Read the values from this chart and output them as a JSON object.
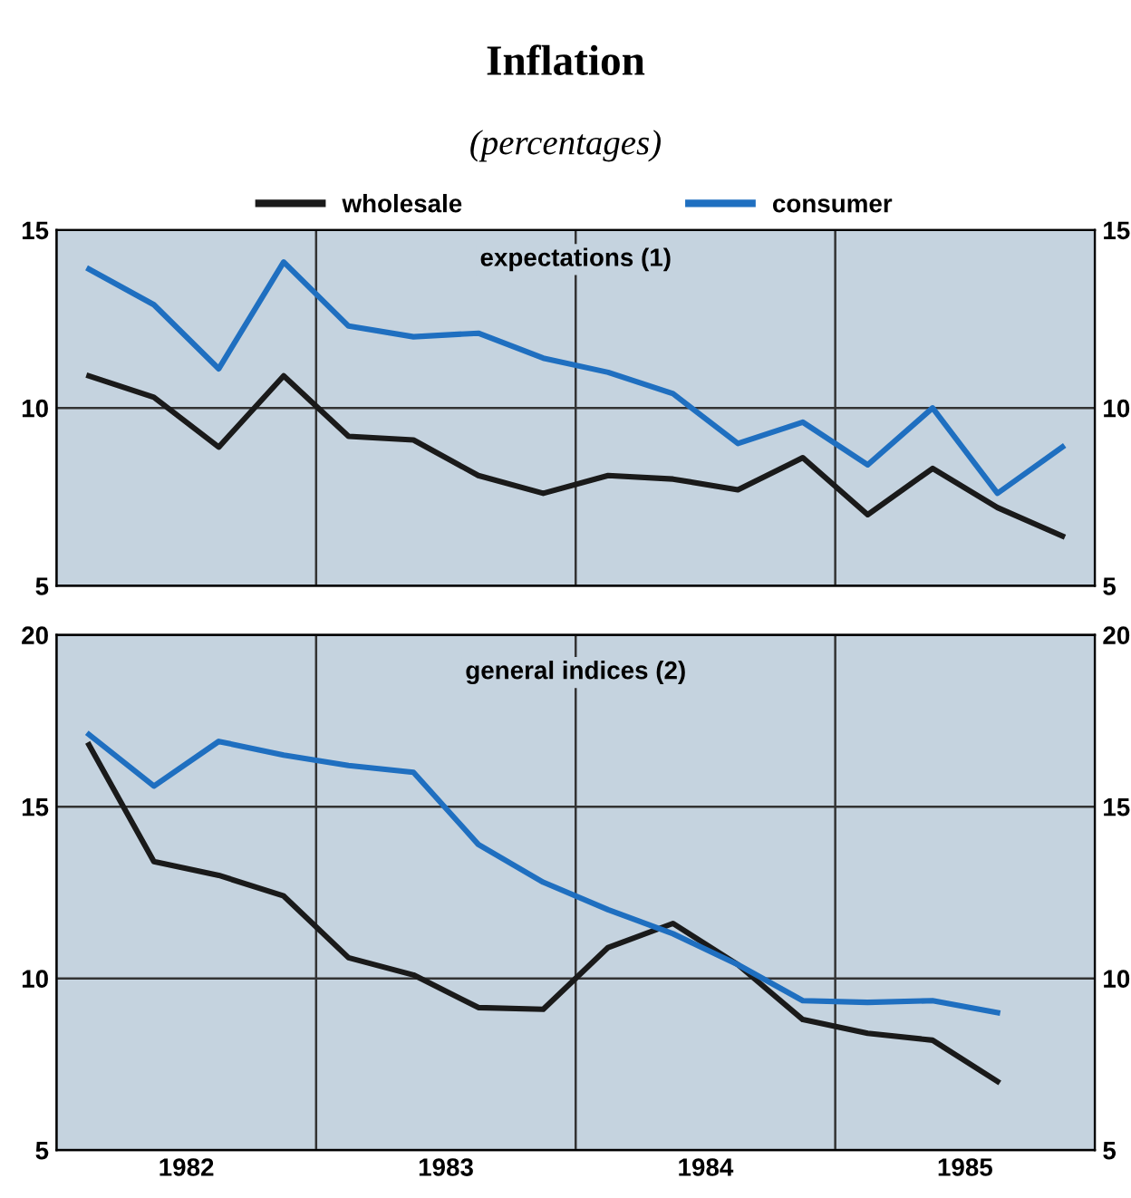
{
  "chart_data": [
    {
      "type": "line",
      "title": "Inflation",
      "subtitle": "(percentages)",
      "annotations": [
        "expectations (1)"
      ],
      "x": [
        1982.125,
        1982.375,
        1982.625,
        1982.875,
        1983.125,
        1983.375,
        1983.625,
        1983.875,
        1984.125,
        1984.375,
        1984.625,
        1984.875,
        1985.125,
        1985.375,
        1985.625,
        1985.875
      ],
      "series": [
        {
          "name": "wholesale",
          "color": "#1a1a1a",
          "values": [
            10.9,
            10.3,
            8.9,
            10.9,
            9.2,
            9.1,
            8.1,
            7.6,
            8.1,
            8.0,
            7.7,
            8.6,
            7.0,
            8.3,
            7.2,
            6.4
          ]
        },
        {
          "name": "consumer",
          "color": "#1f6fc0",
          "values": [
            13.9,
            12.9,
            11.1,
            14.1,
            12.3,
            12.0,
            12.1,
            11.4,
            11.0,
            10.4,
            9.0,
            9.6,
            8.4,
            10.0,
            7.6,
            8.9
          ]
        }
      ],
      "xlim": [
        1982,
        1986
      ],
      "xticks": [
        {
          "value": 1983,
          "label": null
        },
        {
          "value": 1984,
          "label": null
        },
        {
          "value": 1985,
          "label": null
        }
      ],
      "ylim": [
        5,
        15
      ],
      "yticks": [
        5,
        10,
        15
      ],
      "y2lim": [
        5,
        15
      ],
      "y2ticks": [
        5,
        10,
        15
      ],
      "tick_labels": "y",
      "grid": true,
      "legend": "top",
      "marker": "none",
      "line_style": "solid"
    },
    {
      "type": "line",
      "annotations": [
        "general indices (2)"
      ],
      "x": [
        1982.125,
        1982.375,
        1982.625,
        1982.875,
        1983.125,
        1983.375,
        1983.625,
        1983.875,
        1984.125,
        1984.375,
        1984.625,
        1984.875,
        1985.125,
        1985.375,
        1985.625
      ],
      "series": [
        {
          "color": "#1a1a1a",
          "values": [
            16.8,
            13.4,
            13.0,
            12.4,
            10.6,
            10.1,
            9.15,
            9.1,
            10.9,
            11.6,
            10.4,
            8.8,
            8.4,
            8.2,
            7.0
          ]
        },
        {
          "color": "#1f6fc0",
          "values": [
            17.1,
            15.6,
            16.9,
            16.5,
            16.2,
            16.0,
            13.9,
            12.8,
            12.0,
            11.3,
            10.4,
            9.35,
            9.3,
            9.35,
            9.0
          ]
        }
      ],
      "xlim": [
        1982,
        1986
      ],
      "xticks": [
        {
          "value": 1983,
          "label": null
        },
        {
          "value": 1984,
          "label": null
        },
        {
          "value": 1985,
          "label": null
        },
        {
          "value": 1982.5,
          "label": "1982"
        },
        {
          "value": 1983.5,
          "label": "1983"
        },
        {
          "value": 1984.5,
          "label": "1984"
        },
        {
          "value": 1985.5,
          "label": "1985"
        }
      ],
      "ylim": [
        5,
        20
      ],
      "yticks": [
        5,
        10,
        15,
        20
      ],
      "y2lim": [
        5,
        20
      ],
      "y2ticks": [
        5,
        10,
        15,
        20
      ],
      "grid": true,
      "marker": "none",
      "line_style": "solid"
    }
  ]
}
